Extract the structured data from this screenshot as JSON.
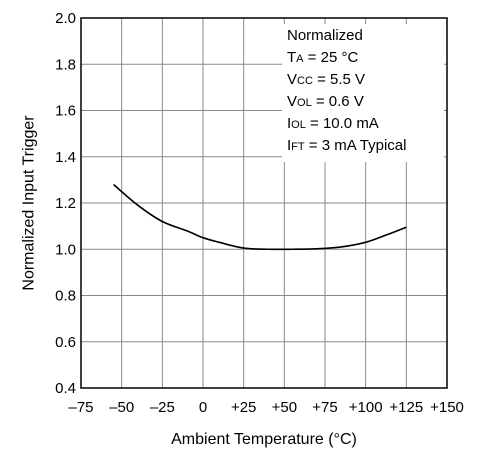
{
  "chart_data": {
    "type": "line",
    "xlabel": "Ambient Temperature (°C)",
    "ylabel": "Normalized Input Trigger",
    "xlim": [
      -75,
      150
    ],
    "ylim": [
      0.4,
      2.0
    ],
    "grid": true,
    "x_ticks": [
      -75,
      -50,
      -25,
      0,
      25,
      50,
      75,
      100,
      125,
      150
    ],
    "x_tick_labels": [
      "–75",
      "–50",
      "–25",
      "0",
      "+25",
      "+50",
      "+75",
      "+100",
      "+125",
      "+150"
    ],
    "y_ticks": [
      0.4,
      0.6,
      0.8,
      1.0,
      1.2,
      1.4,
      1.6,
      1.8,
      2.0
    ],
    "y_tick_labels": [
      "0.4",
      "0.6",
      "0.8",
      "1.0",
      "1.2",
      "1.4",
      "1.6",
      "1.8",
      "2.0"
    ],
    "series": [
      {
        "x": [
          -55,
          -40,
          -25,
          -10,
          0,
          10,
          25,
          40,
          55,
          70,
          85,
          100,
          112,
          125
        ],
        "values": [
          1.28,
          1.19,
          1.12,
          1.08,
          1.05,
          1.03,
          1.005,
          1.0,
          1.0,
          1.002,
          1.01,
          1.03,
          1.06,
          1.095
        ]
      }
    ],
    "annotations": [
      {
        "parts": [
          {
            "text": "Normalized"
          }
        ]
      },
      {
        "parts": [
          {
            "text": "T"
          },
          {
            "text": "A",
            "sub": true
          },
          {
            "text": " = 25 °C"
          }
        ]
      },
      {
        "parts": [
          {
            "text": "V"
          },
          {
            "text": "CC",
            "sub": true
          },
          {
            "text": " = 5.5 V"
          }
        ]
      },
      {
        "parts": [
          {
            "text": "V"
          },
          {
            "text": "OL",
            "sub": true
          },
          {
            "text": " = 0.6 V"
          }
        ]
      },
      {
        "parts": [
          {
            "text": "I"
          },
          {
            "text": "OL",
            "sub": true
          },
          {
            "text": " = 10.0 mA"
          }
        ]
      },
      {
        "parts": [
          {
            "text": "I"
          },
          {
            "text": "FT",
            "sub": true
          },
          {
            "text": " = 3 mA Typical"
          }
        ]
      }
    ]
  }
}
